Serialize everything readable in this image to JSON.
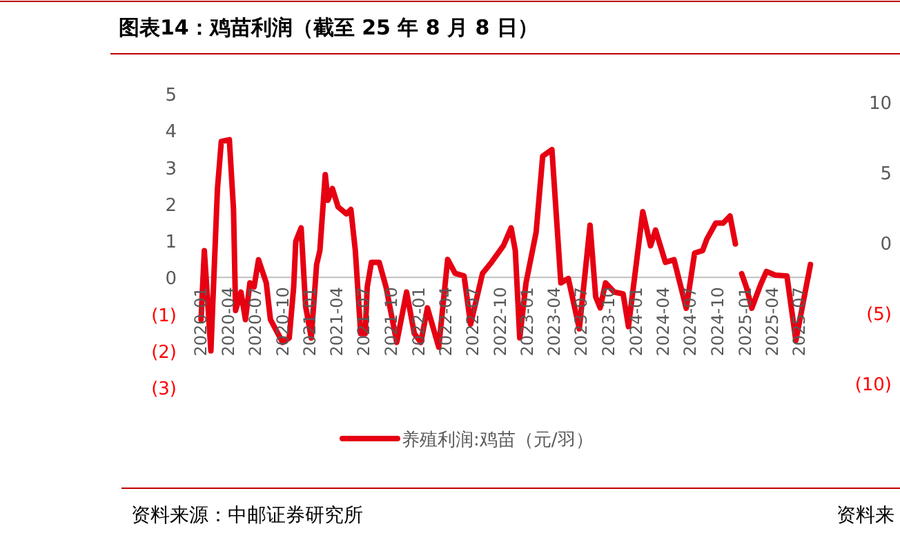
{
  "chart_data": [
    {
      "type": "line",
      "title": "图表14：鸡苗利润（截至 25 年 8 月 8 日）",
      "annotations": [
        "资料来源：中邮证券研究所"
      ],
      "legend": "bottom",
      "xlim": [
        "2019-12-29",
        "2025-08-12"
      ],
      "ylim": [
        -3,
        5
      ],
      "xticks": [
        "2020-01",
        "2020-04",
        "2020-07",
        "2020-10",
        "2021-01",
        "2021-04",
        "2021-07",
        "2021-10",
        "2022-01",
        "2022-04",
        "2022-07",
        "2022-10",
        "2023-01",
        "2023-04",
        "2023-07",
        "2023-10",
        "2024-01",
        "2024-04",
        "2024-07",
        "2024-10",
        "2025-01",
        "2025-04",
        "2025-07"
      ],
      "yticks": [
        {
          "value": -3,
          "label": "(3)"
        },
        {
          "value": -2,
          "label": "(2)"
        },
        {
          "value": -1,
          "label": "(1)"
        },
        0,
        1,
        2,
        3,
        4,
        5
      ],
      "series": [
        {
          "name": "养殖利润:鸡苗（元/羽）",
          "color": "#e60012",
          "x": [
            "2020-01-01",
            "2020-01-12",
            "2020-02-03",
            "2020-02-25",
            "2020-03-09",
            "2020-04-05",
            "2020-04-19",
            "2020-04-26",
            "2020-05-14",
            "2020-05-29",
            "2020-06-13",
            "2020-06-27",
            "2020-07-12",
            "2020-08-07",
            "2020-08-21",
            "2020-10-01",
            "2020-10-23",
            "2020-11-07",
            "2020-11-14",
            "2020-12-02",
            "2020-12-17",
            "2021-01-05",
            "2021-01-23",
            "2021-02-03",
            "2021-02-21",
            "2021-03-02",
            "2021-03-17",
            "2021-04-05",
            "2021-05-03",
            "2021-05-18",
            "2021-06-02",
            "2021-06-20",
            "2021-07-05",
            "2021-07-12",
            "2021-07-26",
            "2021-08-21",
            "2021-09-13",
            "2021-10-19",
            "2021-11-21",
            "2021-12-17",
            "2022-01-08",
            "2022-01-30",
            "2022-03-09",
            "2022-04-08",
            "2022-05-03",
            "2022-06-02",
            "2022-06-24",
            "2022-08-03",
            "2022-09-02",
            "2022-10-12",
            "2022-11-07",
            "2022-11-21",
            "2022-12-06",
            "2022-12-27",
            "2023-01-30",
            "2023-02-21",
            "2023-03-24",
            "2023-04-23",
            "2023-05-18",
            "2023-06-24",
            "2023-07-30",
            "2023-08-18",
            "2023-09-02",
            "2023-09-20",
            "2023-10-19",
            "2023-11-18",
            "2023-12-06",
            "2024-01-23",
            "2024-02-18",
            "2024-03-06",
            "2024-04-08",
            "2024-05-07",
            "2024-06-17",
            "2024-07-15",
            "2024-08-11",
            "2024-08-25",
            "2024-09-24",
            "2024-10-19",
            "2024-11-11",
            "2024-11-29"
          ],
          "values": [
            -1.15,
            0.73,
            -2.0,
            2.4,
            3.7,
            3.75,
            1.85,
            -0.9,
            -0.4,
            -1.15,
            -0.15,
            -0.26,
            0.48,
            -0.15,
            -1.15,
            -1.77,
            -1.65,
            -0.26,
            0.98,
            1.35,
            -0.78,
            -1.65,
            0.35,
            0.73,
            2.8,
            2.1,
            2.42,
            1.92,
            1.73,
            1.85,
            0.73,
            -1.53,
            -1.53,
            -0.26,
            0.41,
            0.41,
            -0.26,
            -1.77,
            -0.4,
            -1.53,
            -1.77,
            -0.83,
            -1.9,
            0.49,
            0.11,
            0.04,
            -1.28,
            0.11,
            0.41,
            0.86,
            1.35,
            0.73,
            -1.65,
            -0.15,
            1.23,
            3.3,
            3.48,
            -0.15,
            -0.03,
            -1.4,
            1.42,
            -0.53,
            -0.83,
            -0.15,
            -0.4,
            -0.45,
            -1.34,
            1.79,
            0.86,
            1.29,
            0.41,
            0.48,
            -0.84,
            0.66,
            0.73,
            1.04,
            1.48,
            1.48,
            1.67,
            0.91
          ]
        },
        {
          "color": "#e60012",
          "x": [
            "2024-12-20",
            "2025-01-05",
            "2025-01-23",
            "2025-02-21",
            "2025-03-13",
            "2025-04-12",
            "2025-05-21",
            "2025-06-20",
            "2025-08-08"
          ],
          "values": [
            0.1,
            -0.27,
            -0.84,
            -0.21,
            0.16,
            0.06,
            0.04,
            -1.72,
            0.35
          ]
        }
      ]
    },
    {
      "type": "other",
      "annotations": [
        "10",
        "5",
        "0",
        "(5)",
        "(10)",
        "资料来"
      ]
    }
  ]
}
